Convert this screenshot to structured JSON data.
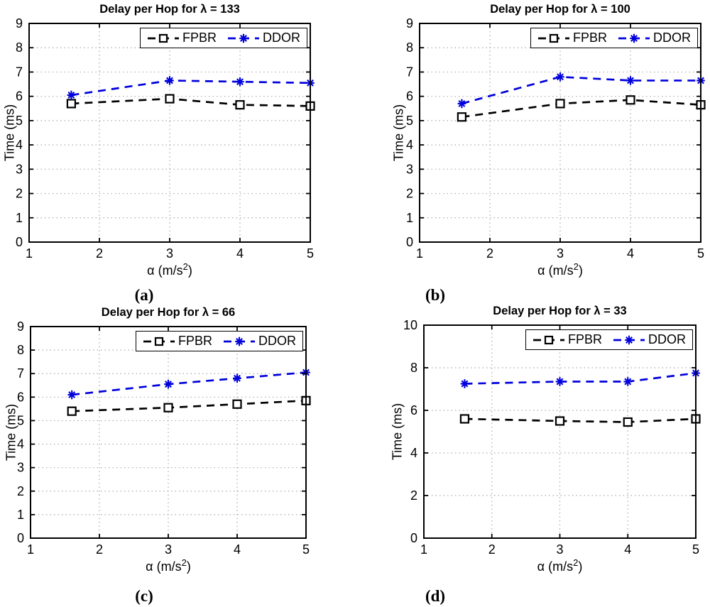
{
  "figure": {
    "background": "#ffffff",
    "grid_color": "#a9a9a9",
    "axis_color": "#000000",
    "fpbr_color": "#000000",
    "ddor_color": "#0000dd"
  },
  "chart_data": [
    {
      "panel": "a",
      "type": "line",
      "title": "Delay per Hop for λ = 133",
      "caption": "(a)",
      "ylabel": "Time (ms)",
      "xlabel": {
        "pre": "α (m/s",
        "sup": "2",
        "post": ")"
      },
      "x": [
        1.6,
        3,
        4,
        5
      ],
      "xlim": [
        1,
        5
      ],
      "xticks": [
        1,
        2,
        3,
        4,
        5
      ],
      "ylim": [
        0,
        9
      ],
      "yticks": [
        0,
        1,
        2,
        3,
        4,
        5,
        6,
        7,
        8,
        9
      ],
      "grid": "dotted",
      "legend_position": "top-right",
      "series": [
        {
          "name": "FPBR",
          "color": "#000000",
          "marker": "square",
          "line": "dashed",
          "values": [
            5.7,
            5.9,
            5.65,
            5.6
          ]
        },
        {
          "name": "DDOR",
          "color": "#0000dd",
          "marker": "asterisk",
          "line": "dashed",
          "values": [
            6.05,
            6.65,
            6.6,
            6.55
          ]
        }
      ]
    },
    {
      "panel": "b",
      "type": "line",
      "title": "Delay per Hop for λ = 100",
      "caption": "(b)",
      "ylabel": "Time (ms)",
      "xlabel": {
        "pre": "α (m/s",
        "sup": "2",
        "post": ")"
      },
      "x": [
        1.6,
        3,
        4,
        5
      ],
      "xlim": [
        1,
        5
      ],
      "xticks": [
        1,
        2,
        3,
        4,
        5
      ],
      "ylim": [
        0,
        9
      ],
      "yticks": [
        0,
        1,
        2,
        3,
        4,
        5,
        6,
        7,
        8,
        9
      ],
      "grid": "dotted",
      "legend_position": "top-right",
      "series": [
        {
          "name": "FPBR",
          "color": "#000000",
          "marker": "square",
          "line": "dashed",
          "values": [
            5.15,
            5.7,
            5.85,
            5.65
          ]
        },
        {
          "name": "DDOR",
          "color": "#0000dd",
          "marker": "asterisk",
          "line": "dashed",
          "values": [
            5.7,
            6.8,
            6.65,
            6.65
          ]
        }
      ]
    },
    {
      "panel": "c",
      "type": "line",
      "title": "Delay per Hop for λ = 66",
      "caption": "(c)",
      "ylabel": "Time (ms)",
      "xlabel": {
        "pre": "α (m/s",
        "sup": "2",
        "post": ")"
      },
      "x": [
        1.6,
        3,
        4,
        5
      ],
      "xlim": [
        1,
        5
      ],
      "xticks": [
        1,
        2,
        3,
        4,
        5
      ],
      "ylim": [
        0,
        9
      ],
      "yticks": [
        0,
        1,
        2,
        3,
        4,
        5,
        6,
        7,
        8,
        9
      ],
      "grid": "dotted",
      "legend_position": "top-right",
      "series": [
        {
          "name": "FPBR",
          "color": "#000000",
          "marker": "square",
          "line": "dashed",
          "values": [
            5.4,
            5.55,
            5.7,
            5.85
          ]
        },
        {
          "name": "DDOR",
          "color": "#0000dd",
          "marker": "asterisk",
          "line": "dashed",
          "values": [
            6.1,
            6.55,
            6.8,
            7.05
          ]
        }
      ]
    },
    {
      "panel": "d",
      "type": "line",
      "title": "Delay per Hop for λ = 33",
      "caption": "(d)",
      "ylabel": "Time (ms)",
      "xlabel": {
        "pre": "α (m/s",
        "sup": "2",
        "post": ")"
      },
      "x": [
        1.6,
        3,
        4,
        5
      ],
      "xlim": [
        1,
        5
      ],
      "xticks": [
        1,
        2,
        3,
        4,
        5
      ],
      "ylim": [
        0,
        10
      ],
      "yticks": [
        0,
        2,
        4,
        6,
        8,
        10
      ],
      "grid": "dotted",
      "legend_position": "top-right",
      "series": [
        {
          "name": "FPBR",
          "color": "#000000",
          "marker": "square",
          "line": "dashed",
          "values": [
            5.6,
            5.5,
            5.45,
            5.6
          ]
        },
        {
          "name": "DDOR",
          "color": "#0000dd",
          "marker": "asterisk",
          "line": "dashed",
          "values": [
            7.25,
            7.35,
            7.35,
            7.75
          ]
        }
      ]
    }
  ]
}
